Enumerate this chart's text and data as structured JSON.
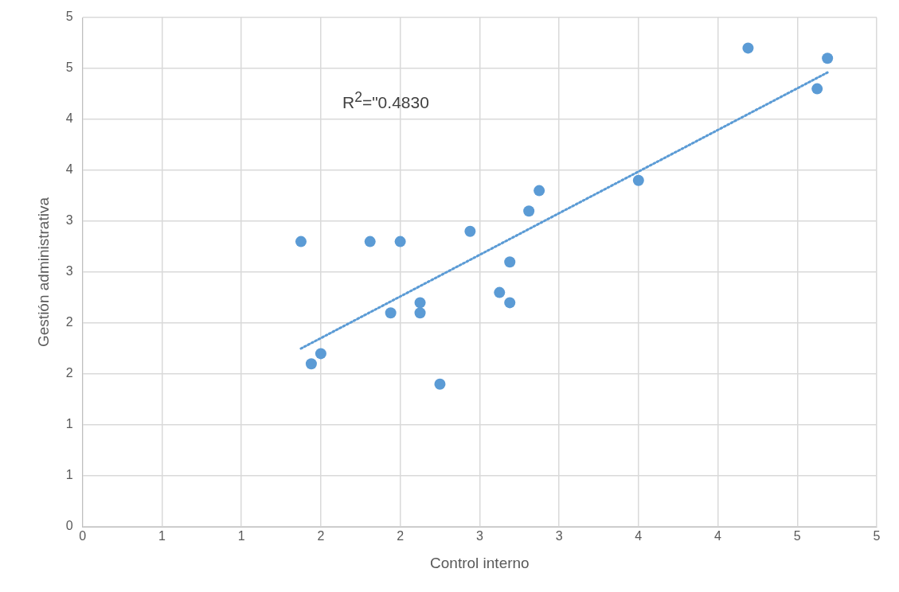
{
  "chart_data": {
    "type": "scatter",
    "xlabel": "Control interno",
    "ylabel": "Gestión administrativa",
    "annotations": [
      "R$^{2}$=\"0.4830"
    ],
    "grid": true,
    "legend": false,
    "marker": "circle",
    "xlim": [
      0,
      5
    ],
    "ylim": [
      0,
      5
    ],
    "xticks": [
      0,
      {
        "value": 0.5,
        "label": "1"
      },
      1,
      {
        "value": 1.5,
        "label": "2"
      },
      2,
      {
        "value": 2.5,
        "label": "3"
      },
      3,
      {
        "value": 3.5,
        "label": "4"
      },
      4,
      {
        "value": 4.5,
        "label": "5"
      },
      5
    ],
    "yticks": [
      0,
      {
        "value": 0.5,
        "label": "1"
      },
      1,
      {
        "value": 1.5,
        "label": "2"
      },
      2,
      {
        "value": 2.5,
        "label": "3"
      },
      3,
      {
        "value": 3.5,
        "label": "4"
      },
      4,
      {
        "value": 4.5,
        "label": "5"
      },
      5
    ],
    "series": [
      {
        "color": "#5b9bd5",
        "x": [
          1.375,
          1.44,
          1.5,
          1.81,
          1.94,
          2.0,
          2.125,
          2.125,
          2.25,
          2.44,
          2.625,
          2.69,
          2.69,
          2.81,
          2.875,
          3.5,
          4.19,
          4.625,
          4.69
        ],
        "values": [
          2.8,
          1.6,
          1.7,
          2.8,
          2.1,
          2.8,
          2.2,
          2.1,
          1.4,
          2.9,
          2.3,
          2.6,
          2.2,
          3.1,
          3.3,
          3.4,
          4.7,
          4.3,
          4.6
        ]
      },
      {
        "type": "line",
        "color": "#5b9bd5",
        "line_style": "dotted",
        "marker": "none",
        "x": [
          1.375,
          4.69
        ],
        "values": [
          1.75,
          4.46
        ]
      }
    ]
  }
}
